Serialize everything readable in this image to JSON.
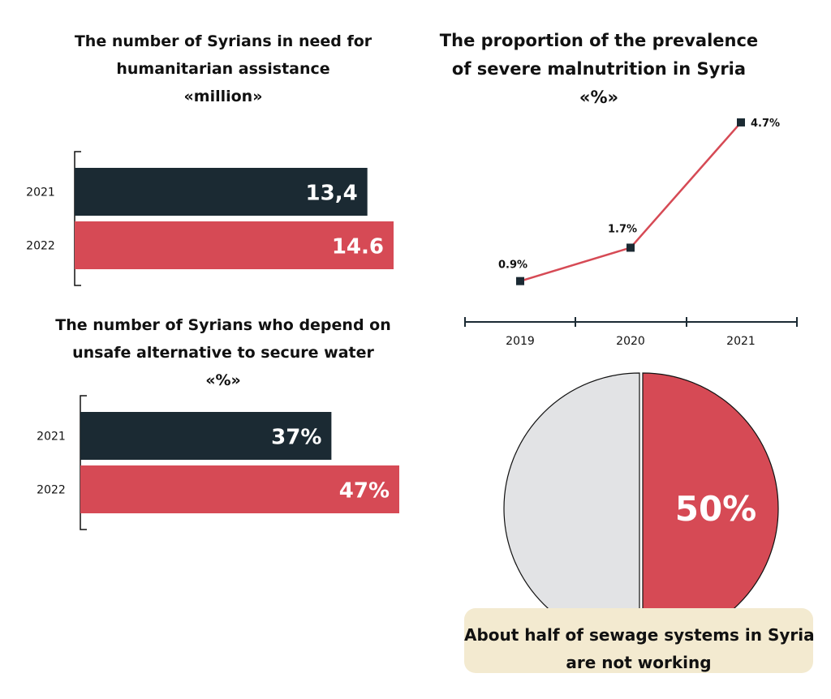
{
  "colors": {
    "dark": "#1b2a33",
    "red": "#d64a55",
    "grey": "#e2e3e5",
    "caption_bg": "#f3ead0"
  },
  "chart_data": [
    {
      "type": "bar",
      "orientation": "horizontal",
      "title_lines": [
        "The number of Syrians in need for",
        "humanitarian assistance",
        "«million»"
      ],
      "categories": [
        "2021",
        "2022"
      ],
      "values": [
        13.4,
        14.6
      ],
      "value_labels": [
        "13,4",
        "14.6"
      ],
      "bar_colors": [
        "#1b2a33",
        "#d64a55"
      ]
    },
    {
      "type": "bar",
      "orientation": "horizontal",
      "title_lines": [
        "The number of Syrians who depend on",
        "unsafe alternative to secure water",
        "«%»"
      ],
      "categories": [
        "2021",
        "2022"
      ],
      "values": [
        37,
        47
      ],
      "value_labels": [
        "37%",
        "47%"
      ],
      "bar_colors": [
        "#1b2a33",
        "#d64a55"
      ]
    },
    {
      "type": "line",
      "title_lines": [
        "The proportion of the prevalence",
        "of severe malnutrition in Syria",
        "«%»"
      ],
      "x": [
        "2019",
        "2020",
        "2021"
      ],
      "values": [
        0.9,
        1.7,
        4.7
      ],
      "value_labels": [
        "0.9%",
        "1.7%",
        "4.7%"
      ],
      "line_color": "#d64a55",
      "marker_color": "#1b2a33"
    },
    {
      "type": "pie",
      "slices": [
        {
          "value": 50,
          "label": "50%",
          "color": "#d64a55"
        },
        {
          "value": 50,
          "label": "",
          "color": "#e2e3e5"
        }
      ],
      "caption_lines": [
        "About half of sewage systems in Syria",
        "are not working"
      ]
    }
  ]
}
